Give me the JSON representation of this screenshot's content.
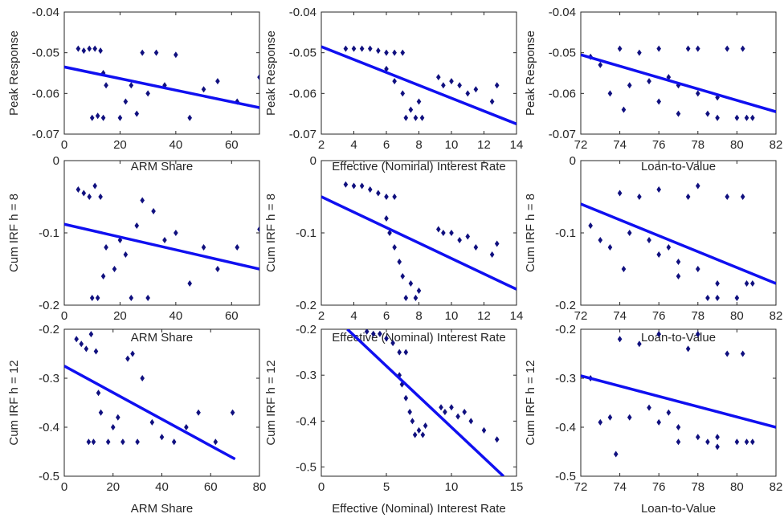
{
  "chart_data": [
    {
      "type": "scatter",
      "xlabel": "ARM Share",
      "ylabel": "Peak Response",
      "xlim": [
        0,
        70
      ],
      "ylim": [
        -0.07,
        -0.04
      ],
      "xticks": [
        0,
        20,
        40,
        60
      ],
      "yticks": [
        -0.07,
        -0.06,
        -0.05,
        -0.04
      ],
      "points": {
        "color": "#10107f",
        "x": [
          5,
          7,
          9,
          11,
          13,
          10,
          12,
          14,
          14,
          15,
          20,
          22,
          24,
          26,
          28,
          30,
          33,
          36,
          40,
          45,
          50,
          55,
          62,
          70
        ],
        "y": [
          -0.049,
          -0.0495,
          -0.049,
          -0.049,
          -0.0495,
          -0.066,
          -0.0655,
          -0.066,
          -0.055,
          -0.058,
          -0.066,
          -0.062,
          -0.058,
          -0.065,
          -0.05,
          -0.06,
          -0.05,
          -0.058,
          -0.0505,
          -0.066,
          -0.059,
          -0.057,
          -0.062,
          -0.056
        ]
      },
      "fit": {
        "color": "#1010f0",
        "x": [
          0,
          70
        ],
        "y": [
          -0.0535,
          -0.0635
        ]
      }
    },
    {
      "type": "scatter",
      "xlabel": "Effective (Nominal) Interest Rate",
      "ylabel": "Peak Response",
      "xlim": [
        2,
        14
      ],
      "ylim": [
        -0.07,
        -0.04
      ],
      "xticks": [
        2,
        4,
        6,
        8,
        10,
        12,
        14
      ],
      "yticks": [
        -0.07,
        -0.06,
        -0.05,
        -0.04
      ],
      "points": {
        "color": "#10107f",
        "x": [
          3.5,
          4,
          4.5,
          5,
          5.5,
          6,
          6.5,
          7,
          6,
          6.5,
          7,
          7.2,
          7.5,
          7.8,
          8,
          8.2,
          9.2,
          9.5,
          10,
          10.5,
          11,
          11.5,
          12.5,
          12.8
        ],
        "y": [
          -0.049,
          -0.049,
          -0.049,
          -0.049,
          -0.0495,
          -0.05,
          -0.05,
          -0.05,
          -0.054,
          -0.057,
          -0.06,
          -0.066,
          -0.064,
          -0.066,
          -0.062,
          -0.066,
          -0.056,
          -0.058,
          -0.057,
          -0.058,
          -0.06,
          -0.059,
          -0.062,
          -0.058
        ]
      },
      "fit": {
        "color": "#1010f0",
        "x": [
          2,
          14
        ],
        "y": [
          -0.0485,
          -0.0675
        ]
      }
    },
    {
      "type": "scatter",
      "xlabel": "Loan-to-Value",
      "ylabel": "Peak Response",
      "xlim": [
        72,
        82
      ],
      "ylim": [
        -0.07,
        -0.04
      ],
      "xticks": [
        72,
        74,
        76,
        78,
        80,
        82
      ],
      "yticks": [
        -0.07,
        -0.06,
        -0.05,
        -0.04
      ],
      "points": {
        "color": "#10107f",
        "x": [
          72.5,
          73,
          73.5,
          74,
          74.5,
          75,
          75.5,
          76,
          76,
          76.5,
          77,
          77,
          77.5,
          78,
          78,
          78.5,
          79,
          79,
          79.5,
          80,
          80.3,
          80.5,
          80.8,
          74.2
        ],
        "y": [
          -0.051,
          -0.053,
          -0.06,
          -0.049,
          -0.058,
          -0.05,
          -0.057,
          -0.062,
          -0.049,
          -0.056,
          -0.058,
          -0.065,
          -0.049,
          -0.06,
          -0.049,
          -0.065,
          -0.061,
          -0.066,
          -0.049,
          -0.066,
          -0.049,
          -0.066,
          -0.066,
          -0.064
        ]
      },
      "fit": {
        "color": "#1010f0",
        "x": [
          72,
          82
        ],
        "y": [
          -0.0505,
          -0.0645
        ]
      }
    },
    {
      "type": "scatter",
      "xlabel": "ARM Share",
      "ylabel": "Cum IRF h = 8",
      "xlim": [
        0,
        70
      ],
      "ylim": [
        -0.2,
        0
      ],
      "xticks": [
        0,
        20,
        40,
        60
      ],
      "yticks": [
        -0.2,
        -0.1,
        0
      ],
      "points": {
        "color": "#10107f",
        "x": [
          5,
          7,
          9,
          11,
          13,
          10,
          12,
          14,
          15,
          18,
          20,
          22,
          24,
          26,
          28,
          30,
          32,
          36,
          40,
          45,
          50,
          55,
          62,
          70
        ],
        "y": [
          -0.04,
          -0.045,
          -0.05,
          -0.035,
          -0.05,
          -0.19,
          -0.19,
          -0.16,
          -0.12,
          -0.15,
          -0.11,
          -0.13,
          -0.19,
          -0.09,
          -0.055,
          -0.19,
          -0.07,
          -0.11,
          -0.1,
          -0.17,
          -0.12,
          -0.15,
          -0.12,
          -0.095
        ]
      },
      "fit": {
        "color": "#1010f0",
        "x": [
          0,
          70
        ],
        "y": [
          -0.088,
          -0.15
        ]
      }
    },
    {
      "type": "scatter",
      "xlabel": "Effective (Nominal) Interest Rate",
      "ylabel": "Cum IRF h = 8",
      "xlim": [
        2,
        14
      ],
      "ylim": [
        -0.2,
        0
      ],
      "xticks": [
        2,
        4,
        6,
        8,
        10,
        12,
        14
      ],
      "yticks": [
        -0.2,
        -0.1,
        0
      ],
      "points": {
        "color": "#10107f",
        "x": [
          3.5,
          4,
          4.5,
          5,
          5.5,
          6,
          6.5,
          6,
          6.2,
          6.5,
          6.8,
          7,
          7.2,
          7.5,
          7.8,
          8,
          9.2,
          9.5,
          10,
          10.5,
          11,
          11.5,
          12.5,
          12.8
        ],
        "y": [
          -0.033,
          -0.035,
          -0.035,
          -0.04,
          -0.045,
          -0.05,
          -0.05,
          -0.08,
          -0.1,
          -0.12,
          -0.14,
          -0.16,
          -0.19,
          -0.17,
          -0.19,
          -0.18,
          -0.095,
          -0.1,
          -0.1,
          -0.11,
          -0.105,
          -0.12,
          -0.13,
          -0.115
        ]
      },
      "fit": {
        "color": "#1010f0",
        "x": [
          2,
          14
        ],
        "y": [
          -0.05,
          -0.178
        ]
      }
    },
    {
      "type": "scatter",
      "xlabel": "Loan-to-Value",
      "ylabel": "Cum IRF h = 8",
      "xlim": [
        72,
        82
      ],
      "ylim": [
        -0.2,
        0
      ],
      "xticks": [
        72,
        74,
        76,
        78,
        80,
        82
      ],
      "yticks": [
        -0.2,
        -0.1,
        0
      ],
      "points": {
        "color": "#10107f",
        "x": [
          72.5,
          73,
          73.5,
          74,
          74.5,
          75,
          75.5,
          76,
          76,
          76.5,
          77,
          77,
          77.5,
          78,
          78,
          78.5,
          79,
          79,
          79.5,
          80,
          80.3,
          80.5,
          80.8,
          74.2
        ],
        "y": [
          -0.09,
          -0.11,
          -0.12,
          -0.045,
          -0.1,
          -0.05,
          -0.11,
          -0.13,
          -0.04,
          -0.12,
          -0.14,
          -0.16,
          -0.05,
          -0.15,
          -0.035,
          -0.19,
          -0.17,
          -0.19,
          -0.05,
          -0.19,
          -0.05,
          -0.17,
          -0.17,
          -0.15
        ]
      },
      "fit": {
        "color": "#1010f0",
        "x": [
          72,
          82
        ],
        "y": [
          -0.06,
          -0.17
        ]
      }
    },
    {
      "type": "scatter",
      "xlabel": "ARM Share",
      "ylabel": "Cum IRF h = 12",
      "xlim": [
        0,
        80
      ],
      "ylim": [
        -0.5,
        -0.2
      ],
      "xticks": [
        0,
        20,
        40,
        60,
        80
      ],
      "yticks": [
        -0.5,
        -0.4,
        -0.3,
        -0.2
      ],
      "points": {
        "color": "#10107f",
        "x": [
          5,
          7,
          9,
          11,
          13,
          10,
          12,
          14,
          15,
          18,
          20,
          22,
          24,
          26,
          28,
          30,
          32,
          36,
          40,
          45,
          50,
          55,
          62,
          69
        ],
        "y": [
          -0.22,
          -0.23,
          -0.24,
          -0.21,
          -0.245,
          -0.43,
          -0.43,
          -0.33,
          -0.37,
          -0.43,
          -0.4,
          -0.38,
          -0.43,
          -0.26,
          -0.25,
          -0.43,
          -0.3,
          -0.39,
          -0.42,
          -0.43,
          -0.4,
          -0.37,
          -0.43,
          -0.37
        ]
      },
      "fit": {
        "color": "#1010f0",
        "x": [
          0,
          70
        ],
        "y": [
          -0.275,
          -0.465
        ]
      }
    },
    {
      "type": "scatter",
      "xlabel": "Effective (Nominal) Interest Rate",
      "ylabel": "Cum IRF h = 12",
      "xlim": [
        0,
        15
      ],
      "ylim": [
        -0.52,
        -0.2
      ],
      "xticks": [
        0,
        5,
        10,
        15
      ],
      "yticks": [
        -0.5,
        -0.4,
        -0.3,
        -0.2
      ],
      "points": {
        "color": "#10107f",
        "x": [
          3.5,
          4,
          4.5,
          5,
          5.5,
          6,
          6.5,
          6,
          6.2,
          6.5,
          6.8,
          7,
          7.2,
          7.5,
          7.8,
          8,
          9.2,
          9.5,
          10,
          10.5,
          11,
          11.5,
          12.5,
          13.5
        ],
        "y": [
          -0.205,
          -0.21,
          -0.21,
          -0.22,
          -0.23,
          -0.25,
          -0.25,
          -0.3,
          -0.32,
          -0.35,
          -0.38,
          -0.4,
          -0.43,
          -0.42,
          -0.43,
          -0.41,
          -0.37,
          -0.38,
          -0.37,
          -0.39,
          -0.38,
          -0.4,
          -0.42,
          -0.44
        ]
      },
      "fit": {
        "color": "#1010f0",
        "x": [
          2,
          14
        ],
        "y": [
          -0.2,
          -0.52
        ]
      }
    },
    {
      "type": "scatter",
      "xlabel": "Loan-to-Value",
      "ylabel": "Cum IRF h = 12",
      "xlim": [
        72,
        82
      ],
      "ylim": [
        -0.5,
        -0.2
      ],
      "xticks": [
        72,
        74,
        76,
        78,
        80,
        82
      ],
      "yticks": [
        -0.5,
        -0.4,
        -0.3,
        -0.2
      ],
      "points": {
        "color": "#10107f",
        "x": [
          72.5,
          73,
          73.5,
          74,
          74.5,
          75,
          75.5,
          76,
          76,
          76.5,
          77,
          77,
          77.5,
          78,
          78,
          78.5,
          79,
          79,
          79.5,
          80,
          80.3,
          80.5,
          80.8,
          73.8
        ],
        "y": [
          -0.3,
          -0.39,
          -0.38,
          -0.22,
          -0.38,
          -0.23,
          -0.36,
          -0.39,
          -0.21,
          -0.37,
          -0.4,
          -0.43,
          -0.24,
          -0.42,
          -0.21,
          -0.43,
          -0.42,
          -0.44,
          -0.25,
          -0.43,
          -0.25,
          -0.43,
          -0.43,
          -0.455
        ]
      },
      "fit": {
        "color": "#1010f0",
        "x": [
          72,
          82
        ],
        "y": [
          -0.295,
          -0.4
        ]
      }
    }
  ]
}
